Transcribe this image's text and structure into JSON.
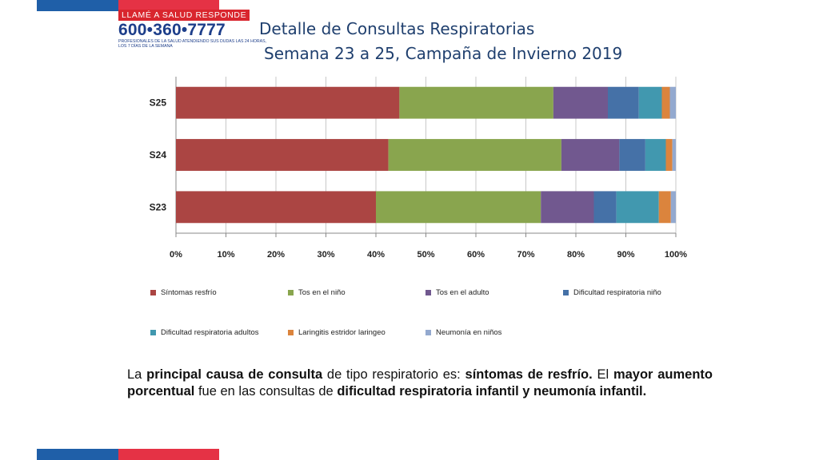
{
  "header": {
    "logo_tagline": "LLAMÉ A SALUD RESPONDE",
    "logo_number": "600•360•7777",
    "logo_subtext_1": "PROFESIONALES DE LA SALUD ATENDIENDO SUS DUDAS LAS 24 HORAS,",
    "logo_subtext_2": "LOS 7 DÍAS DE LA SEMANA",
    "title_line1": "Detalle de Consultas Respiratorias",
    "title_line2": "Semana 23 a 25, Campaña de Invierno 2019"
  },
  "colors": {
    "series": [
      "#ab4543",
      "#89a54e",
      "#71588f",
      "#4571a7",
      "#4198af",
      "#db843d",
      "#93a9cf"
    ]
  },
  "chart_data": {
    "type": "bar",
    "orientation": "horizontal",
    "stacked": "percent",
    "categories": [
      "S25",
      "S24",
      "S23"
    ],
    "series": [
      {
        "name": "Síntomas resfrío",
        "values": [
          44.7,
          42.5,
          40.0
        ]
      },
      {
        "name": "Tos en el niño",
        "values": [
          30.8,
          34.6,
          33.0
        ]
      },
      {
        "name": "Tos en el adulto",
        "values": [
          10.9,
          11.6,
          10.6
        ]
      },
      {
        "name": "Dificultad respiratoria niño",
        "values": [
          6.2,
          5.2,
          4.5
        ]
      },
      {
        "name": "Dificultad respiratoria adultos",
        "values": [
          4.6,
          4.1,
          8.5
        ]
      },
      {
        "name": "Laringitis estridor laringeo",
        "values": [
          1.6,
          1.3,
          2.4
        ]
      },
      {
        "name": "Neumonía en niños",
        "values": [
          1.2,
          0.7,
          1.0
        ]
      }
    ],
    "xlim": [
      0,
      100
    ],
    "xticks": [
      "0%",
      "10%",
      "20%",
      "30%",
      "40%",
      "50%",
      "60%",
      "70%",
      "80%",
      "90%",
      "100%"
    ],
    "grid": true,
    "legend": "bottom"
  },
  "summary": {
    "t1": "La ",
    "b1": "principal causa de consulta",
    "t2": " de tipo respiratorio es: ",
    "b2": "síntomas de resfrío.",
    "t3": " El ",
    "b3": "mayor aumento porcentual",
    "t4": " fue en las consultas de ",
    "b4": "dificultad respiratoria infantil y neumonía infantil."
  }
}
